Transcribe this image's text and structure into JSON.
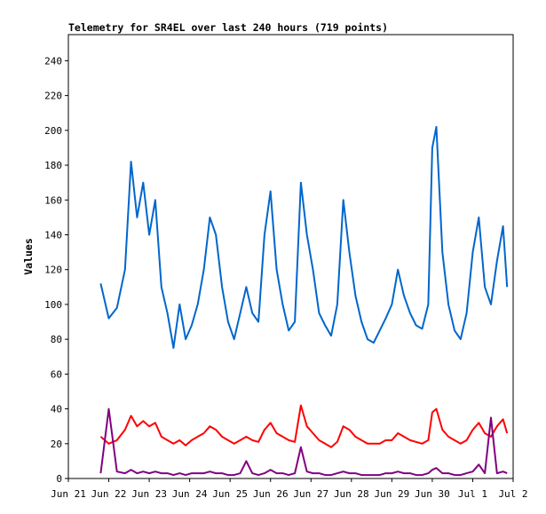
{
  "chart_data": {
    "type": "line",
    "title": "Telemetry for SR4EL over last 240 hours (719 points)",
    "xlabel": "",
    "ylabel": "Values",
    "xlim": [
      "Jun 21",
      "Jul 2"
    ],
    "ylim": [
      0,
      255
    ],
    "grid": false,
    "legend": "none",
    "y_ticks": [
      "0",
      "20",
      "40",
      "60",
      "80",
      "100",
      "120",
      "140",
      "160",
      "180",
      "200",
      "220",
      "240"
    ],
    "x_ticks": [
      "Jun 21",
      "Jun 22",
      "Jun 23",
      "Jun 24",
      "Jun 25",
      "Jun 26",
      "Jun 27",
      "Jun 28",
      "Jun 29",
      "Jun 30",
      "Jul 1",
      "Jul 2"
    ],
    "x_unit": "day offset from Jun 21",
    "series": [
      {
        "color": "#0066cc",
        "x": [
          0.8,
          1.0,
          1.2,
          1.4,
          1.55,
          1.7,
          1.85,
          2.0,
          2.15,
          2.3,
          2.45,
          2.6,
          2.75,
          2.9,
          3.05,
          3.2,
          3.35,
          3.5,
          3.65,
          3.8,
          3.95,
          4.1,
          4.25,
          4.4,
          4.55,
          4.7,
          4.85,
          5.0,
          5.15,
          5.3,
          5.45,
          5.6,
          5.75,
          5.9,
          6.05,
          6.2,
          6.35,
          6.5,
          6.65,
          6.8,
          6.95,
          7.1,
          7.25,
          7.4,
          7.55,
          7.7,
          7.85,
          8.0,
          8.15,
          8.3,
          8.45,
          8.6,
          8.75,
          8.9,
          9.0,
          9.1,
          9.25,
          9.4,
          9.55,
          9.7,
          9.85,
          10.0,
          10.15,
          10.3,
          10.45,
          10.6,
          10.75,
          10.85
        ],
        "y": [
          112,
          92,
          98,
          120,
          182,
          150,
          170,
          140,
          160,
          110,
          95,
          75,
          100,
          80,
          88,
          100,
          120,
          150,
          140,
          110,
          90,
          80,
          95,
          110,
          95,
          90,
          140,
          165,
          120,
          100,
          85,
          90,
          170,
          140,
          120,
          95,
          88,
          82,
          100,
          160,
          130,
          105,
          90,
          80,
          78,
          85,
          92,
          100,
          120,
          105,
          95,
          88,
          86,
          100,
          190,
          202,
          130,
          100,
          85,
          80,
          95,
          130,
          150,
          110,
          100,
          125,
          145,
          110
        ]
      },
      {
        "color": "#ff0000",
        "x": [
          0.8,
          1.0,
          1.2,
          1.4,
          1.55,
          1.7,
          1.85,
          2.0,
          2.15,
          2.3,
          2.45,
          2.6,
          2.75,
          2.9,
          3.05,
          3.2,
          3.35,
          3.5,
          3.65,
          3.8,
          3.95,
          4.1,
          4.25,
          4.4,
          4.55,
          4.7,
          4.85,
          5.0,
          5.15,
          5.3,
          5.45,
          5.6,
          5.75,
          5.9,
          6.05,
          6.2,
          6.35,
          6.5,
          6.65,
          6.8,
          6.95,
          7.1,
          7.25,
          7.4,
          7.55,
          7.7,
          7.85,
          8.0,
          8.15,
          8.3,
          8.45,
          8.6,
          8.75,
          8.9,
          9.0,
          9.1,
          9.25,
          9.4,
          9.55,
          9.7,
          9.85,
          10.0,
          10.15,
          10.3,
          10.45,
          10.6,
          10.75,
          10.85
        ],
        "y": [
          24,
          20,
          22,
          28,
          36,
          30,
          33,
          30,
          32,
          24,
          22,
          20,
          22,
          19,
          22,
          24,
          26,
          30,
          28,
          24,
          22,
          20,
          22,
          24,
          22,
          21,
          28,
          32,
          26,
          24,
          22,
          21,
          42,
          30,
          26,
          22,
          20,
          18,
          21,
          30,
          28,
          24,
          22,
          20,
          20,
          20,
          22,
          22,
          26,
          24,
          22,
          21,
          20,
          22,
          38,
          40,
          28,
          24,
          22,
          20,
          22,
          28,
          32,
          26,
          24,
          30,
          34,
          26
        ]
      },
      {
        "color": "#800080",
        "x": [
          0.8,
          1.0,
          1.2,
          1.4,
          1.55,
          1.7,
          1.85,
          2.0,
          2.15,
          2.3,
          2.45,
          2.6,
          2.75,
          2.9,
          3.05,
          3.2,
          3.35,
          3.5,
          3.65,
          3.8,
          3.95,
          4.1,
          4.25,
          4.4,
          4.55,
          4.7,
          4.85,
          5.0,
          5.15,
          5.3,
          5.45,
          5.6,
          5.75,
          5.9,
          6.05,
          6.2,
          6.35,
          6.5,
          6.65,
          6.8,
          6.95,
          7.1,
          7.25,
          7.4,
          7.55,
          7.7,
          7.85,
          8.0,
          8.15,
          8.3,
          8.45,
          8.6,
          8.75,
          8.9,
          9.0,
          9.1,
          9.25,
          9.4,
          9.55,
          9.7,
          9.85,
          10.0,
          10.15,
          10.3,
          10.45,
          10.6,
          10.75,
          10.85
        ],
        "y": [
          3,
          40,
          4,
          3,
          5,
          3,
          4,
          3,
          4,
          3,
          3,
          2,
          3,
          2,
          3,
          3,
          3,
          4,
          3,
          3,
          2,
          2,
          3,
          10,
          3,
          2,
          3,
          5,
          3,
          3,
          2,
          3,
          18,
          4,
          3,
          3,
          2,
          2,
          3,
          4,
          3,
          3,
          2,
          2,
          2,
          2,
          3,
          3,
          4,
          3,
          3,
          2,
          2,
          3,
          5,
          6,
          3,
          3,
          2,
          2,
          3,
          4,
          8,
          3,
          35,
          3,
          4,
          3
        ]
      }
    ]
  }
}
